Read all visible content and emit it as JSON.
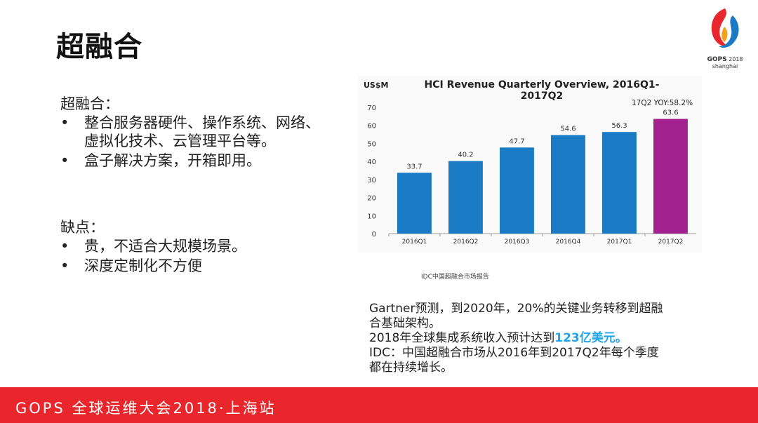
{
  "slide": {
    "title": "超融合",
    "footer": "GOPS 全球运维大会2018·上海站",
    "logo": {
      "name": "GOPS",
      "year": "2018",
      "city": "shanghai"
    }
  },
  "pros": {
    "heading": "超融合：",
    "items": [
      "整合服务器硬件、操作系统、网络、虚拟化技术、云管理平台等。",
      "盒子解决方案，开箱即用。"
    ]
  },
  "cons": {
    "heading": "缺点：",
    "items": [
      "贵，不适合大规模场景。",
      "深度定制化不方便"
    ]
  },
  "notes": {
    "line1": "Gartner预测，到2020年，20%的关键业务转移到超融合基础架构。",
    "line2_prefix": "2018年全球集成系统收入预计达到",
    "line2_highlight": "123亿美元。",
    "line3": "IDC：中国超融合市场从2016年到2017Q2年每个季度都在持续增长。"
  },
  "chart_source": "IDC中国超融合市场报告",
  "colors": {
    "bar": "#1a7bc4",
    "highlight_bar": "#a3218e",
    "footer": "#e8262b",
    "accent_text": "#1fa6e8"
  },
  "chart_data": {
    "type": "bar",
    "title": "HCI Revenue Quarterly Overview, 2016Q1-2017Q2",
    "ylabel": "US$M",
    "annotation": "17Q2 YOY:58.2%",
    "categories": [
      "2016Q1",
      "2016Q2",
      "2016Q3",
      "2016Q4",
      "2017Q1",
      "2017Q2"
    ],
    "values": [
      33.7,
      40.2,
      47.7,
      54.6,
      56.3,
      63.6
    ],
    "ylim": [
      0,
      70
    ],
    "yticks": [
      0,
      10,
      20,
      30,
      40,
      50,
      60,
      70
    ],
    "grid": false,
    "highlight_index": 5
  }
}
